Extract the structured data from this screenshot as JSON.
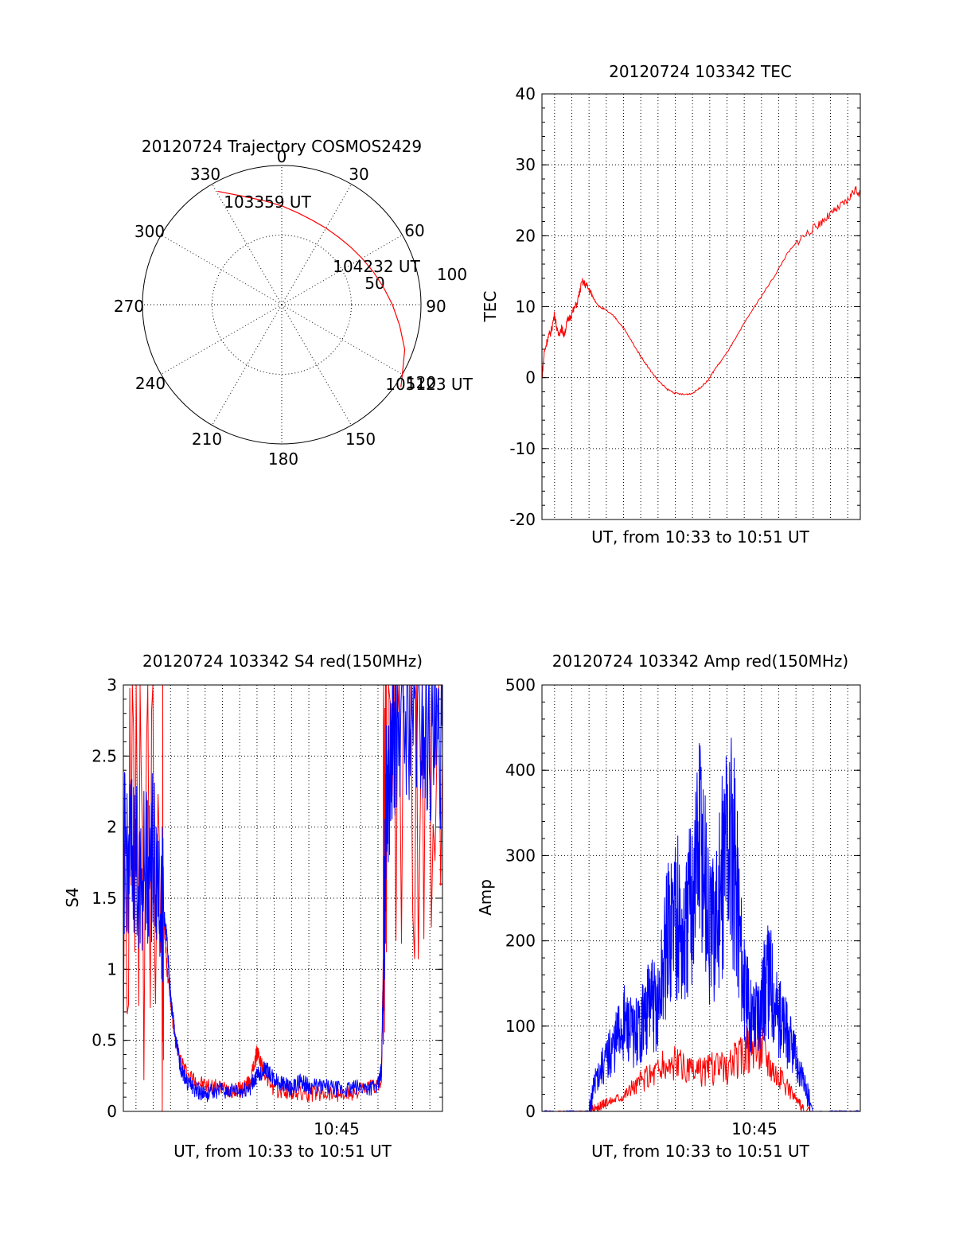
{
  "colors": {
    "red": "#ff0000",
    "blue": "#0000ff",
    "ink": "#000000"
  },
  "chart_data": [
    {
      "id": "trajectory",
      "type": "polar",
      "title": "20120724 Trajectory COSMOS2429",
      "angle_labels": [
        "0",
        "30",
        "60",
        "90",
        "150",
        "180",
        "210",
        "240",
        "270",
        "300",
        "330"
      ],
      "radial_labels": [
        "50",
        "100"
      ],
      "r_max": 100,
      "grid": true,
      "track": {
        "color": "red",
        "azimuth_deg": [
          -29.5,
          -20,
          -10,
          0,
          10,
          20,
          30,
          40,
          50,
          60,
          70,
          80,
          90,
          100,
          110,
          120,
          124.7
        ],
        "zenith_deg": [
          93.6,
          83,
          76,
          71,
          67,
          64.5,
          63.5,
          63.4,
          64.5,
          66.6,
          69.8,
          74,
          79.5,
          86,
          94,
          100,
          104.1
        ]
      },
      "annotations": [
        "103359 UT",
        "104232 UT",
        "105123 UT",
        "120"
      ]
    },
    {
      "id": "tec",
      "type": "line",
      "title": "20120724 103342 TEC",
      "xlabel": "UT, from 10:33 to 10:51 UT",
      "ylabel": "TEC",
      "ylim": [
        -20,
        40
      ],
      "yticks": [
        "40",
        "30",
        "20",
        "10",
        "0",
        "-10",
        "-20"
      ],
      "xlim_min": [
        0.27,
        18.73
      ],
      "grid": true,
      "series": [
        {
          "color": "red",
          "x": [
            0.27,
            0.4,
            0.6,
            0.8,
            1.0,
            1.2,
            1.4,
            1.55,
            1.75,
            2.0,
            2.3,
            2.6,
            2.85,
            3.1,
            3.3,
            3.6,
            4.0,
            4.5,
            5.0,
            5.5,
            6.0,
            6.5,
            7.0,
            7.5,
            8.0,
            8.5,
            9.0,
            9.5,
            9.9,
            10.3,
            10.8,
            11.5,
            12.2,
            13.0,
            13.8,
            14.5,
            15.2,
            16.0,
            16.5,
            17.0,
            17.5,
            18.0,
            18.4,
            18.73
          ],
          "y": [
            0,
            3.5,
            5.5,
            6.5,
            9,
            6,
            7,
            6,
            8,
            9,
            10.5,
            13.5,
            13,
            12,
            11,
            10,
            9.5,
            8.5,
            7,
            5,
            3,
            1.2,
            -0.4,
            -1.6,
            -2.2,
            -2.4,
            -2.2,
            -1.3,
            -0.4,
            1.2,
            2.8,
            5.5,
            8.5,
            11.5,
            14.5,
            17.5,
            19.5,
            21,
            22,
            23,
            24,
            25,
            26.5,
            26
          ]
        }
      ]
    },
    {
      "id": "s4",
      "type": "line",
      "title": "20120724 103342 S4 red(150MHz)",
      "xlabel": "UT, from 10:33 to 10:51 UT",
      "ylabel": "S4",
      "ylim": [
        0,
        3
      ],
      "yticks": [
        "3",
        "2.5",
        "2",
        "1.5",
        "1",
        "0.5",
        "0"
      ],
      "xtick_label": "10:45",
      "xlim_min": [
        0.27,
        18.73
      ],
      "grid": true,
      "series": [
        {
          "color": "red",
          "x": [
            0.27,
            2.5,
            2.8,
            3.3,
            4.0,
            5.0,
            6.0,
            7.0,
            7.6,
            8.0,
            8.4,
            9.0,
            10.0,
            11.0,
            12.0,
            13.0,
            14.0,
            15.2,
            15.5,
            18.73
          ],
          "y": [
            1.8,
            1.6,
            1.0,
            0.45,
            0.25,
            0.18,
            0.16,
            0.15,
            0.2,
            0.42,
            0.28,
            0.15,
            0.13,
            0.12,
            0.14,
            0.12,
            0.15,
            0.2,
            2.8,
            2.5
          ]
        },
        {
          "color": "blue",
          "x": [
            0.27,
            0.8,
            1.4,
            2.0,
            2.5,
            2.8,
            3.0,
            3.3,
            3.6,
            4.0,
            4.5,
            5.0,
            6.0,
            7.0,
            7.6,
            8.0,
            8.5,
            9.0,
            9.5,
            10.0,
            10.5,
            11.0,
            12.0,
            13.0,
            14.0,
            15.0,
            15.2,
            15.5,
            16.0,
            17.0,
            18.0,
            18.73
          ],
          "y": [
            1.8,
            1.75,
            1.7,
            1.8,
            1.5,
            1.2,
            0.8,
            0.5,
            0.3,
            0.2,
            0.15,
            0.12,
            0.15,
            0.13,
            0.17,
            0.25,
            0.3,
            0.22,
            0.2,
            0.15,
            0.22,
            0.18,
            0.17,
            0.15,
            0.17,
            0.17,
            0.3,
            2.2,
            2.7,
            2.8,
            2.6,
            2.5
          ]
        }
      ]
    },
    {
      "id": "amp",
      "type": "line",
      "title": "20120724 103342 Amp red(150MHz)",
      "xlabel": "UT, from 10:33 to 10:51 UT",
      "ylabel": "Amp",
      "ylim": [
        0,
        500
      ],
      "yticks": [
        "500",
        "400",
        "300",
        "200",
        "100",
        "0"
      ],
      "xtick_label": "10:45",
      "xlim_min": [
        0.27,
        18.73
      ],
      "grid": true,
      "series": [
        {
          "color": "red",
          "x": [
            0.27,
            3.0,
            3.5,
            4.0,
            5.0,
            6.0,
            7.0,
            8.0,
            9.0,
            10.0,
            11.0,
            12.0,
            13.0,
            14.0,
            15.0,
            15.5,
            18.73
          ],
          "y": [
            0,
            0,
            4,
            10,
            20,
            35,
            50,
            55,
            45,
            50,
            50,
            70,
            80,
            40,
            15,
            0,
            0
          ]
        },
        {
          "color": "blue",
          "x": [
            0.27,
            3.0,
            3.4,
            4.0,
            4.5,
            5.0,
            5.5,
            6.0,
            6.5,
            7.0,
            7.5,
            8.0,
            8.5,
            9.0,
            9.5,
            10.0,
            10.5,
            11.0,
            11.5,
            12.0,
            12.5,
            13.0,
            13.5,
            14.0,
            14.5,
            15.0,
            15.5,
            16.0,
            18.73
          ],
          "y": [
            0,
            0,
            40,
            60,
            80,
            105,
            90,
            100,
            130,
            120,
            200,
            240,
            190,
            260,
            330,
            200,
            230,
            330,
            280,
            140,
            110,
            130,
            160,
            110,
            90,
            60,
            30,
            0,
            0
          ]
        }
      ]
    }
  ]
}
